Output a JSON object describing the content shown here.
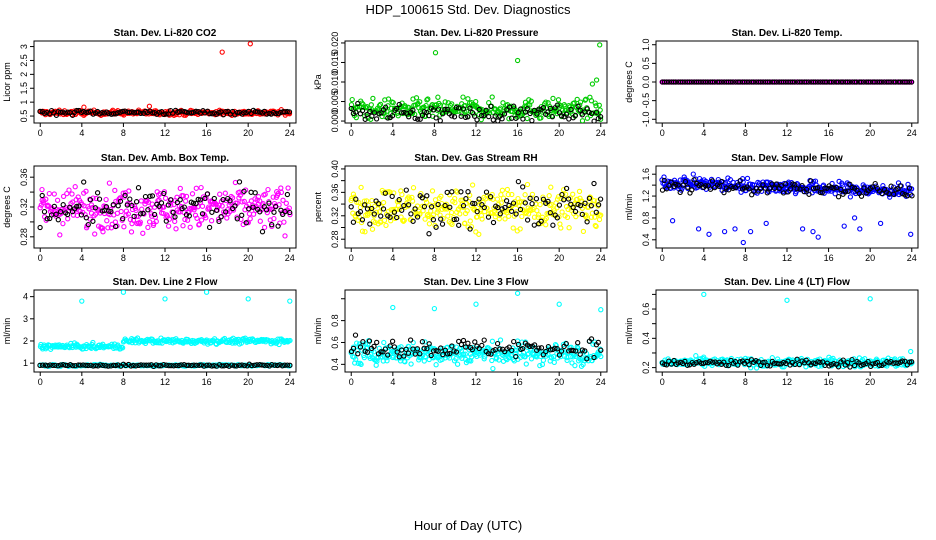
{
  "page": {
    "title": "HDP_100615  Std. Dev. Diagnostics",
    "xlabel": "Hour of Day (UTC)"
  },
  "chart_data": [
    {
      "type": "scatter",
      "title": "Stan. Dev. Li-820 CO2",
      "ylabel": "Licor ppm",
      "xlim": [
        -0.6,
        24.6
      ],
      "ylim": [
        0.25,
        3.2
      ],
      "xticks": [
        0,
        4,
        8,
        12,
        16,
        20,
        24
      ],
      "yticks": [
        0.5,
        1.0,
        1.5,
        2.0,
        2.5,
        3.0
      ],
      "ytick_labels": [
        "0.5",
        "1",
        "1.5",
        "2",
        "2.5",
        "3"
      ],
      "ytick_rotated": true,
      "series": [
        {
          "name": "main",
          "color": "#ff0000",
          "n": 300,
          "base": 0.62,
          "spread": 0.08,
          "outliers": [
            [
              17.5,
              2.8
            ],
            [
              20.2,
              3.1
            ],
            [
              10.5,
              0.85
            ],
            [
              4.2,
              0.82
            ]
          ]
        },
        {
          "name": "alt",
          "color": "#000000",
          "n": 110,
          "base": 0.63,
          "spread": 0.08,
          "outliers": []
        }
      ]
    },
    {
      "type": "scatter",
      "title": "Stan. Dev. Li-820 Pressure",
      "ylabel": "kPa",
      "xlim": [
        -0.6,
        24.6
      ],
      "ylim": [
        -0.0005,
        0.0205
      ],
      "xticks": [
        0,
        4,
        8,
        12,
        16,
        20,
        24
      ],
      "yticks": [
        0.0,
        0.005,
        0.01,
        0.015,
        0.02
      ],
      "ytick_labels": [
        "0.000",
        "0.005",
        "0.010",
        "0.015",
        "0.020"
      ],
      "ytick_rotated": true,
      "series": [
        {
          "name": "main",
          "color": "#00cc00",
          "n": 300,
          "base": 0.003,
          "spread": 0.0025,
          "outliers": [
            [
              8.1,
              0.0175
            ],
            [
              16.0,
              0.0155
            ],
            [
              23.9,
              0.0195
            ],
            [
              23.6,
              0.0105
            ],
            [
              23.2,
              0.0095
            ]
          ]
        },
        {
          "name": "alt",
          "color": "#000000",
          "n": 110,
          "base": 0.002,
          "spread": 0.002,
          "outliers": []
        }
      ]
    },
    {
      "type": "scatter",
      "title": "Stan. Dev. Li-820 Temp.",
      "ylabel": "degrees C",
      "xlim": [
        -0.6,
        24.6
      ],
      "ylim": [
        -1.1,
        1.1
      ],
      "xticks": [
        0,
        4,
        8,
        12,
        16,
        20,
        24
      ],
      "yticks": [
        -1.0,
        -0.5,
        0.0,
        0.5,
        1.0
      ],
      "ytick_labels": [
        "-1.0",
        "-0.5",
        "0.0",
        "0.5",
        "1.0"
      ],
      "ytick_rotated": true,
      "series": [
        {
          "name": "main",
          "color": "#ff00ff",
          "n": 300,
          "base": 0.0,
          "spread": 0.0,
          "outliers": []
        },
        {
          "name": "alt",
          "color": "#000000",
          "n": 110,
          "base": 0.0,
          "spread": 0.0,
          "outliers": []
        }
      ]
    },
    {
      "type": "scatter",
      "title": "Stan. Dev. Amb. Box Temp.",
      "ylabel": "degrees C",
      "xlim": [
        -0.6,
        24.6
      ],
      "ylim": [
        0.265,
        0.375
      ],
      "xticks": [
        0,
        4,
        8,
        12,
        16,
        20,
        24
      ],
      "yticks": [
        0.28,
        0.3,
        0.32,
        0.34,
        0.36
      ],
      "ytick_labels": [
        "0.28",
        "",
        "0.32",
        "",
        "0.36"
      ],
      "ytick_rotated": true,
      "series": [
        {
          "name": "main",
          "color": "#ff00ff",
          "n": 330,
          "base": 0.318,
          "spread": 0.028,
          "outliers": []
        },
        {
          "name": "alt",
          "color": "#000000",
          "n": 110,
          "base": 0.318,
          "spread": 0.025,
          "outliers": []
        }
      ]
    },
    {
      "type": "scatter",
      "title": "Stan. Dev. Gas Stream RH",
      "ylabel": "percent",
      "xlim": [
        -0.6,
        24.6
      ],
      "ylim": [
        0.265,
        0.405
      ],
      "xticks": [
        0,
        4,
        8,
        12,
        16,
        20,
        24
      ],
      "yticks": [
        0.28,
        0.3,
        0.32,
        0.34,
        0.36,
        0.38,
        0.4
      ],
      "ytick_labels": [
        "0.28",
        "",
        "0.32",
        "",
        "0.36",
        "",
        "0.40"
      ],
      "ytick_rotated": true,
      "series": [
        {
          "name": "main",
          "color": "#ffff00",
          "n": 330,
          "base": 0.333,
          "spread": 0.035,
          "outliers": []
        },
        {
          "name": "alt",
          "color": "#000000",
          "n": 110,
          "base": 0.333,
          "spread": 0.033,
          "outliers": []
        }
      ]
    },
    {
      "type": "scatter",
      "title": "Stan. Dev. Sample Flow",
      "ylabel": "ml/min",
      "xlim": [
        -0.6,
        24.6
      ],
      "ylim": [
        0.25,
        1.75
      ],
      "xticks": [
        0,
        4,
        8,
        12,
        16,
        20,
        24
      ],
      "yticks": [
        0.4,
        0.6,
        0.8,
        1.0,
        1.2,
        1.4,
        1.6
      ],
      "ytick_labels": [
        "0.4",
        "",
        "0.8",
        "",
        "1.2",
        "",
        "1.6"
      ],
      "ytick_rotated": true,
      "series": [
        {
          "name": "main",
          "color": "#0000ff",
          "n": 340,
          "base": 1.45,
          "spread": 0.12,
          "trend": -0.007,
          "outliers": [
            [
              1.0,
              0.75
            ],
            [
              3.5,
              0.6
            ],
            [
              4.5,
              0.5
            ],
            [
              6.0,
              0.55
            ],
            [
              7.0,
              0.6
            ],
            [
              7.8,
              0.35
            ],
            [
              8.5,
              0.55
            ],
            [
              10.0,
              0.7
            ],
            [
              13.5,
              0.6
            ],
            [
              14.5,
              0.55
            ],
            [
              15.0,
              0.45
            ],
            [
              17.5,
              0.65
            ],
            [
              18.5,
              0.8
            ],
            [
              19.0,
              0.6
            ],
            [
              21.0,
              0.7
            ],
            [
              23.9,
              0.5
            ]
          ]
        },
        {
          "name": "alt",
          "color": "#000000",
          "n": 110,
          "base": 1.4,
          "spread": 0.12,
          "trend": -0.005,
          "outliers": []
        }
      ]
    },
    {
      "type": "scatter",
      "title": "Stan. Dev. Line 2 Flow",
      "ylabel": "ml/min",
      "xlim": [
        -0.6,
        24.6
      ],
      "ylim": [
        0.6,
        4.3
      ],
      "xticks": [
        0,
        4,
        8,
        12,
        16,
        20,
        24
      ],
      "yticks": [
        1,
        2,
        3,
        4
      ],
      "ytick_labels": [
        "1",
        "2",
        "3",
        "4"
      ],
      "ytick_rotated": false,
      "series": [
        {
          "name": "main",
          "color": "#00ffff",
          "n": 280,
          "base": 1.75,
          "spread": 0.12,
          "step": [
            8.0,
            0.25
          ],
          "outliers": [
            [
              4.0,
              3.8
            ],
            [
              8.0,
              4.2
            ],
            [
              12.0,
              3.9
            ],
            [
              16.0,
              4.2
            ],
            [
              20.0,
              3.9
            ],
            [
              24.0,
              3.8
            ]
          ]
        },
        {
          "name": "low",
          "color": "#00ffff",
          "n": 160,
          "base": 0.9,
          "spread": 0.04,
          "outliers": []
        },
        {
          "name": "alt",
          "color": "#000000",
          "n": 100,
          "base": 0.9,
          "spread": 0.04,
          "outliers": []
        }
      ]
    },
    {
      "type": "scatter",
      "title": "Stan. Dev. Line 3 Flow",
      "ylabel": "ml/min",
      "xlim": [
        -0.6,
        24.6
      ],
      "ylim": [
        0.33,
        1.08
      ],
      "xticks": [
        0,
        4,
        8,
        12,
        16,
        20,
        24
      ],
      "yticks": [
        0.4,
        0.6,
        0.8,
        1.0
      ],
      "ytick_labels": [
        "0.4",
        "0.6",
        "0.8",
        ""
      ],
      "ytick_rotated": true,
      "series": [
        {
          "name": "main",
          "color": "#00ffff",
          "n": 330,
          "base": 0.5,
          "spread": 0.1,
          "outliers": [
            [
              4.0,
              0.92
            ],
            [
              8.0,
              0.91
            ],
            [
              12.0,
              0.95
            ],
            [
              16.0,
              1.05
            ],
            [
              20.0,
              0.95
            ],
            [
              24.0,
              0.9
            ]
          ]
        },
        {
          "name": "alt",
          "color": "#000000",
          "n": 110,
          "base": 0.55,
          "spread": 0.08,
          "outliers": []
        }
      ]
    },
    {
      "type": "scatter",
      "title": "Stan. Dev. Line 4 (LT) Flow",
      "ylabel": "ml/min",
      "xlim": [
        -0.6,
        24.6
      ],
      "ylim": [
        0.17,
        0.73
      ],
      "xticks": [
        0,
        4,
        8,
        12,
        16,
        20,
        24
      ],
      "yticks": [
        0.2,
        0.3,
        0.4,
        0.5,
        0.6,
        0.7
      ],
      "ytick_labels": [
        "0.2",
        "",
        "0.4",
        "",
        "0.6",
        ""
      ],
      "ytick_rotated": true,
      "series": [
        {
          "name": "main",
          "color": "#00ffff",
          "n": 300,
          "base": 0.235,
          "spread": 0.03,
          "outliers": [
            [
              4.0,
              0.7
            ],
            [
              12.0,
              0.66
            ],
            [
              20.0,
              0.67
            ],
            [
              23.9,
              0.31
            ]
          ]
        },
        {
          "name": "alt",
          "color": "#000000",
          "n": 110,
          "base": 0.23,
          "spread": 0.025,
          "outliers": []
        }
      ]
    }
  ]
}
